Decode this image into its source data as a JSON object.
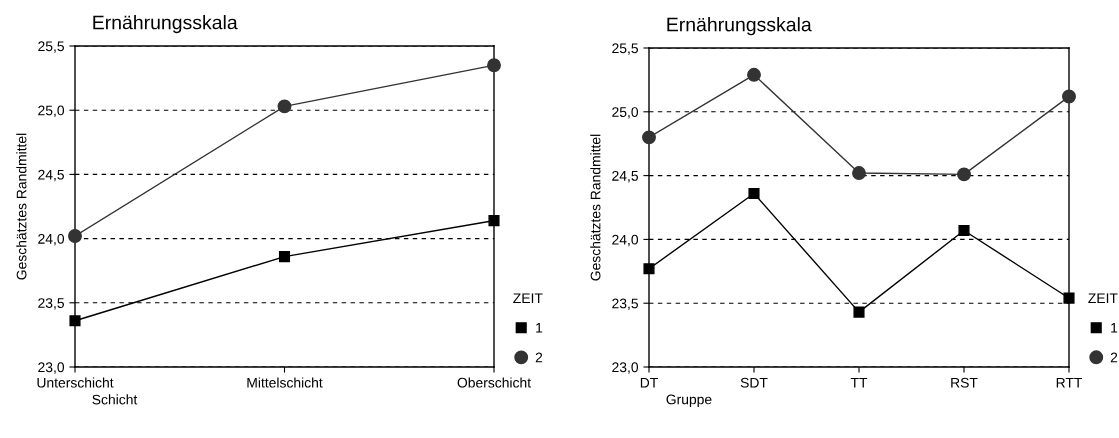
{
  "chart_data": [
    {
      "type": "line",
      "title": "Ernährungsskala",
      "xlabel": "Schicht",
      "ylabel": "Geschätztes Randmittel",
      "legend_title": "ZEIT",
      "categories": [
        "Unterschicht",
        "Mittelschicht",
        "Oberschicht"
      ],
      "series": [
        {
          "name": "1",
          "color": "#000000",
          "marker": "square",
          "values": [
            23.36,
            23.86,
            24.14
          ]
        },
        {
          "name": "2",
          "color": "#333333",
          "marker": "circle",
          "values": [
            24.02,
            25.03,
            25.35
          ]
        }
      ],
      "ylim": [
        23.0,
        25.5
      ],
      "yticks": [
        {
          "value": 23.0,
          "label": "23,0"
        },
        {
          "value": 23.5,
          "label": "23,5"
        },
        {
          "value": 24.0,
          "label": "24,0"
        },
        {
          "value": 24.5,
          "label": "24,5"
        },
        {
          "value": 25.0,
          "label": "25,0"
        },
        {
          "value": 25.5,
          "label": "25,5"
        }
      ],
      "grid": "y",
      "legend": "right",
      "line_style": "solid"
    },
    {
      "type": "line",
      "title": "Ernährungsskala",
      "xlabel": "Gruppe",
      "ylabel": "Geschätztes Randmittel",
      "legend_title": "ZEIT",
      "categories": [
        "DT",
        "SDT",
        "TT",
        "RST",
        "RTT"
      ],
      "series": [
        {
          "name": "1",
          "color": "#000000",
          "marker": "square",
          "values": [
            23.77,
            24.36,
            23.43,
            24.07,
            23.54
          ]
        },
        {
          "name": "2",
          "color": "#333333",
          "marker": "circle",
          "values": [
            24.8,
            25.29,
            24.52,
            24.51,
            25.12
          ]
        }
      ],
      "ylim": [
        23.0,
        25.5
      ],
      "yticks": [
        {
          "value": 23.0,
          "label": "23,0"
        },
        {
          "value": 23.5,
          "label": "23,5"
        },
        {
          "value": 24.0,
          "label": "24,0"
        },
        {
          "value": 24.5,
          "label": "24,5"
        },
        {
          "value": 25.0,
          "label": "25,0"
        },
        {
          "value": 25.5,
          "label": "25,5"
        }
      ],
      "grid": "y",
      "legend": "right",
      "line_style": "solid"
    }
  ]
}
